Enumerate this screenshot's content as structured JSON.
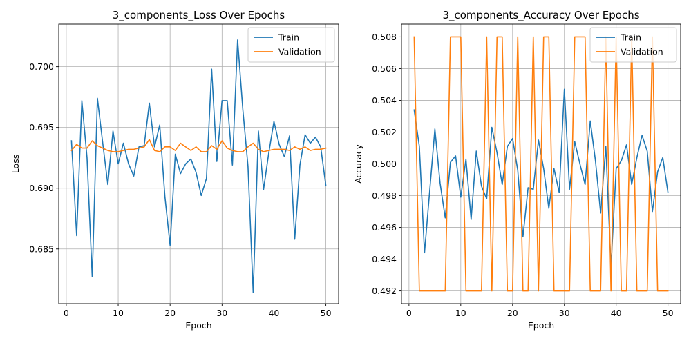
{
  "chart_data": [
    {
      "type": "line",
      "title": "3_components_Loss Over Epochs",
      "xlabel": "Epoch",
      "ylabel": "Loss",
      "xlim": [
        -1.45,
        52.45
      ],
      "ylim": [
        0.6805,
        0.7035
      ],
      "xticks": [
        0,
        10,
        20,
        30,
        40,
        50
      ],
      "yticks": [
        0.685,
        0.69,
        0.695,
        0.7
      ],
      "ytick_labels": [
        "0.685",
        "0.690",
        "0.695",
        "0.700"
      ],
      "grid": true,
      "legend": "top-right",
      "x": [
        1,
        2,
        3,
        4,
        5,
        6,
        7,
        8,
        9,
        10,
        11,
        12,
        13,
        14,
        15,
        16,
        17,
        18,
        19,
        20,
        21,
        22,
        23,
        24,
        25,
        26,
        27,
        28,
        29,
        30,
        31,
        32,
        33,
        34,
        35,
        36,
        37,
        38,
        39,
        40,
        41,
        42,
        43,
        44,
        45,
        46,
        47,
        48,
        49,
        50
      ],
      "series": [
        {
          "name": "Train",
          "color": "#1f77b4",
          "values": [
            0.6939,
            0.6861,
            0.6972,
            0.6925,
            0.6827,
            0.6974,
            0.6938,
            0.6903,
            0.6947,
            0.692,
            0.6937,
            0.692,
            0.691,
            0.6934,
            0.6935,
            0.697,
            0.6934,
            0.6952,
            0.6893,
            0.6853,
            0.6928,
            0.6912,
            0.692,
            0.6924,
            0.6913,
            0.6894,
            0.6908,
            0.6998,
            0.6922,
            0.6972,
            0.6972,
            0.6919,
            0.7022,
            0.6965,
            0.6918,
            0.6814,
            0.6947,
            0.6899,
            0.6929,
            0.6955,
            0.6936,
            0.6926,
            0.6943,
            0.6858,
            0.6919,
            0.6944,
            0.6937,
            0.6942,
            0.6934,
            0.6902
          ]
        },
        {
          "name": "Validation",
          "color": "#ff7f0e",
          "values": [
            0.6931,
            0.6936,
            0.6933,
            0.6933,
            0.6939,
            0.6935,
            0.6933,
            0.6931,
            0.693,
            0.693,
            0.6931,
            0.6932,
            0.6932,
            0.6933,
            0.6934,
            0.694,
            0.6931,
            0.693,
            0.6934,
            0.6934,
            0.6931,
            0.6937,
            0.6934,
            0.6931,
            0.6934,
            0.693,
            0.693,
            0.6935,
            0.6932,
            0.6939,
            0.6933,
            0.6931,
            0.693,
            0.693,
            0.6934,
            0.6937,
            0.6932,
            0.693,
            0.6931,
            0.6932,
            0.6932,
            0.6932,
            0.6931,
            0.6934,
            0.6932,
            0.6934,
            0.6931,
            0.6932,
            0.6932,
            0.6933
          ]
        }
      ]
    },
    {
      "type": "line",
      "title": "3_components_Accuracy Over Epochs",
      "xlabel": "Epoch",
      "ylabel": "Accuracy",
      "xlim": [
        -1.45,
        52.45
      ],
      "ylim": [
        0.4912,
        0.5088
      ],
      "xticks": [
        0,
        10,
        20,
        30,
        40,
        50
      ],
      "yticks": [
        0.492,
        0.494,
        0.496,
        0.498,
        0.5,
        0.502,
        0.504,
        0.506,
        0.508
      ],
      "ytick_labels": [
        "0.492",
        "0.494",
        "0.496",
        "0.498",
        "0.500",
        "0.502",
        "0.504",
        "0.506",
        "0.508"
      ],
      "grid": true,
      "legend": "top-right",
      "x": [
        1,
        2,
        3,
        4,
        5,
        6,
        7,
        8,
        9,
        10,
        11,
        12,
        13,
        14,
        15,
        16,
        17,
        18,
        19,
        20,
        21,
        22,
        23,
        24,
        25,
        26,
        27,
        28,
        29,
        30,
        31,
        32,
        33,
        34,
        35,
        36,
        37,
        38,
        39,
        40,
        41,
        42,
        43,
        44,
        45,
        46,
        47,
        48,
        49,
        50
      ],
      "series": [
        {
          "name": "Train",
          "color": "#1f77b4",
          "values": [
            0.5034,
            0.5011,
            0.4944,
            0.4983,
            0.5022,
            0.4988,
            0.4966,
            0.5001,
            0.5005,
            0.4979,
            0.5003,
            0.4965,
            0.5008,
            0.4986,
            0.4978,
            0.5023,
            0.5007,
            0.4987,
            0.5011,
            0.5016,
            0.4996,
            0.4954,
            0.4985,
            0.4984,
            0.5015,
            0.4997,
            0.4972,
            0.4997,
            0.4982,
            0.5047,
            0.4984,
            0.5014,
            0.5,
            0.4987,
            0.5027,
            0.5002,
            0.4969,
            0.5011,
            0.4935,
            0.4997,
            0.5002,
            0.5012,
            0.4987,
            0.5004,
            0.5018,
            0.5008,
            0.497,
            0.4995,
            0.5004,
            0.4982
          ]
        },
        {
          "name": "Validation",
          "color": "#ff7f0e",
          "values": [
            0.508,
            0.492,
            0.492,
            0.492,
            0.492,
            0.492,
            0.492,
            0.508,
            0.508,
            0.508,
            0.492,
            0.492,
            0.492,
            0.492,
            0.508,
            0.492,
            0.508,
            0.508,
            0.492,
            0.492,
            0.508,
            0.492,
            0.492,
            0.508,
            0.492,
            0.508,
            0.508,
            0.492,
            0.492,
            0.492,
            0.492,
            0.508,
            0.508,
            0.508,
            0.492,
            0.492,
            0.492,
            0.508,
            0.492,
            0.508,
            0.492,
            0.492,
            0.508,
            0.492,
            0.492,
            0.492,
            0.508,
            0.492,
            0.492,
            0.492
          ]
        }
      ]
    }
  ]
}
